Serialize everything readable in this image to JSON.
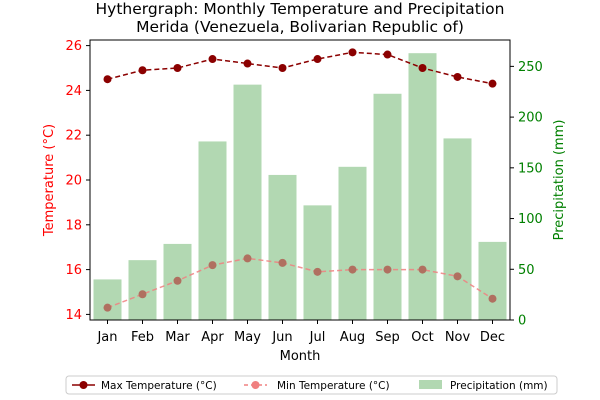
{
  "chart_data": {
    "type": "bar+line",
    "title_lines": [
      "Hythergraph: Monthly Temperature and Precipitation",
      "Merida (Venezuela, Bolivarian Republic of)"
    ],
    "xlabel": "Month",
    "ylabel_left": "Temperature (°C)",
    "ylabel_right": "Precipitation (mm)",
    "categories": [
      "Jan",
      "Feb",
      "Mar",
      "Apr",
      "May",
      "Jun",
      "Jul",
      "Aug",
      "Sep",
      "Oct",
      "Nov",
      "Dec"
    ],
    "y_left_ticks": [
      14,
      16,
      18,
      20,
      22,
      24,
      26
    ],
    "y_left_range": [
      13.75,
      26.25
    ],
    "y_right_ticks": [
      0,
      50,
      100,
      150,
      200,
      250
    ],
    "y_right_range": [
      0,
      276
    ],
    "series": [
      {
        "name": "Max Temperature (°C)",
        "kind": "line",
        "axis": "left",
        "color": "#8b0000",
        "values": [
          24.5,
          24.9,
          25.0,
          25.4,
          25.2,
          25.0,
          25.4,
          25.7,
          25.6,
          25.0,
          24.6,
          24.3
        ]
      },
      {
        "name": "Min Temperature (°C)",
        "kind": "line",
        "axis": "left",
        "color": "#f08080",
        "values": [
          14.3,
          14.9,
          15.5,
          16.2,
          16.5,
          16.3,
          15.9,
          16.0,
          16.0,
          16.0,
          15.7,
          14.7
        ]
      },
      {
        "name": "Precipitation (mm)",
        "kind": "bar",
        "axis": "right",
        "color": "#b2d8b2",
        "values": [
          40,
          59,
          75,
          176,
          232,
          143,
          113,
          151,
          223,
          263,
          179,
          77
        ]
      }
    ],
    "legend_position": "bottom-center",
    "grid": false,
    "colors": {
      "left_axis": "#ff0000",
      "right_axis": "#008000"
    }
  }
}
